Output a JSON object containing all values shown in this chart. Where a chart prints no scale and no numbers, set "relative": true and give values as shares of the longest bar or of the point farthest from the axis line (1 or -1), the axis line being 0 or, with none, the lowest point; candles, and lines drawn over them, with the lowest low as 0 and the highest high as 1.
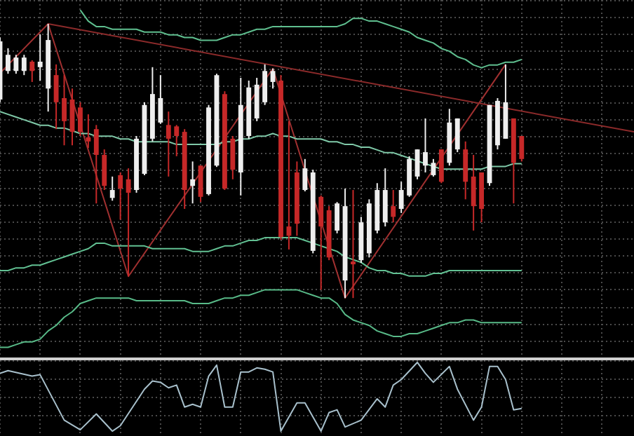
{
  "chart_data": [
    {
      "type": "candlestick",
      "relative": true,
      "grid": true,
      "legend": false,
      "tick_labels": false,
      "categories": [
        null,
        null,
        null,
        null,
        null,
        null,
        null,
        null,
        null,
        null,
        null,
        null,
        null,
        null,
        null,
        null,
        null,
        null,
        null,
        null,
        null,
        null,
        null,
        null,
        null,
        null,
        null,
        null,
        null,
        null,
        null,
        null,
        null,
        null,
        null,
        null,
        null,
        null,
        null,
        null,
        null,
        null,
        null,
        null,
        null,
        null,
        null,
        null,
        null,
        null,
        null,
        null,
        null,
        null,
        null,
        null,
        null,
        null,
        null,
        null,
        null,
        null,
        null,
        null,
        null,
        null,
        null,
        null,
        null,
        null,
        null,
        null,
        null,
        null,
        null,
        null,
        null,
        null,
        null,
        null
      ],
      "ohlc": [
        [
          0.724,
          0.951,
          0.714,
          0.936
        ],
        [
          0.828,
          0.911,
          0.818,
          0.887
        ],
        [
          0.828,
          0.887,
          0.818,
          0.877
        ],
        [
          0.828,
          0.887,
          0.813,
          0.877
        ],
        [
          0.862,
          0.867,
          0.788,
          0.828
        ],
        [
          0.842,
          0.961,
          0.793,
          0.862
        ],
        [
          0.764,
          1,
          0.68,
          0.941
        ],
        [
          0.813,
          0.852,
          0.616,
          0.714
        ],
        [
          0.729,
          0.813,
          0.557,
          0.645
        ],
        [
          0.724,
          0.764,
          0.557,
          0.606
        ],
        [
          0.695,
          0.714,
          0.591,
          0.606
        ],
        [
          0.586,
          0.67,
          0.547,
          0.571
        ],
        [
          0.616,
          0.631,
          0.345,
          0.522
        ],
        [
          0.522,
          0.542,
          0.394,
          0.409
        ],
        [
          0.365,
          0.443,
          0.355,
          0.394
        ],
        [
          0.448,
          0.458,
          0.286,
          0.399
        ],
        [
          0.433,
          0.473,
          0.079,
          0.384
        ],
        [
          0.394,
          0.591,
          0.384,
          0.581
        ],
        [
          0.453,
          0.714,
          0.448,
          0.704
        ],
        [
          0.581,
          0.842,
          0.571,
          0.744
        ],
        [
          0.64,
          0.813,
          0.635,
          0.729
        ],
        [
          0.631,
          0.68,
          0.443,
          0.581
        ],
        [
          0.626,
          0.631,
          0.517,
          0.591
        ],
        [
          0.606,
          0.616,
          0.325,
          0.394
        ],
        [
          0.409,
          0.498,
          0.345,
          0.433
        ],
        [
          0.483,
          0.483,
          0.35,
          0.369
        ],
        [
          0.379,
          0.704,
          0.374,
          0.695
        ],
        [
          0.483,
          0.818,
          0.478,
          0.813
        ],
        [
          0.744,
          0.754,
          0.394,
          0.399
        ],
        [
          0.581,
          0.591,
          0.433,
          0.468
        ],
        [
          0.458,
          0.803,
          0.374,
          0.704
        ],
        [
          0.591,
          0.793,
          0.581,
          0.768
        ],
        [
          0.655,
          0.803,
          0.645,
          0.778
        ],
        [
          0.714,
          0.852,
          0.704,
          0.828
        ],
        [
          0.788,
          0.837,
          0.764,
          0.828
        ],
        [
          0.793,
          0.813,
          0.212,
          0.222
        ],
        [
          0.261,
          0.645,
          0.177,
          0.227
        ],
        [
          0.458,
          0.498,
          0.227,
          0.271
        ],
        [
          0.394,
          0.507,
          0.389,
          0.473
        ],
        [
          0.172,
          0.468,
          0.163,
          0.458
        ],
        [
          0.369,
          0.374,
          0.03,
          0.261
        ],
        [
          0.32,
          0.335,
          0.138,
          0.148
        ],
        [
          0.246,
          0.35,
          0.236,
          0.345
        ],
        [
          0.064,
          0.399,
          0,
          0.335
        ],
        [
          0.133,
          0.394,
          0,
          0.123
        ],
        [
          0.138,
          0.296,
          0.128,
          0.276
        ],
        [
          0.163,
          0.36,
          0.148,
          0.345
        ],
        [
          0.246,
          0.419,
          0.236,
          0.394
        ],
        [
          0.276,
          0.473,
          0.261,
          0.394
        ],
        [
          0.335,
          0.394,
          0.276,
          0.296
        ],
        [
          0.325,
          0.424,
          0.31,
          0.394
        ],
        [
          0.374,
          0.517,
          0.369,
          0.507
        ],
        [
          0.443,
          0.542,
          0.433,
          0.542
        ],
        [
          0.483,
          0.655,
          0.458,
          0.532
        ],
        [
          0.448,
          0.507,
          0.443,
          0.493
        ],
        [
          0.542,
          0.542,
          0.419,
          0.424
        ],
        [
          0.493,
          0.69,
          0.483,
          0.64
        ],
        [
          0.542,
          0.655,
          0.532,
          0.655
        ],
        [
          0.542,
          0.571,
          0.36,
          0.424
        ],
        [
          0.443,
          0.522,
          0.246,
          0.335
        ],
        [
          0.458,
          0.458,
          0.276,
          0.325
        ],
        [
          0.419,
          0.704,
          0.409,
          0.704
        ],
        [
          0.557,
          0.729,
          0.542,
          0.719
        ],
        [
          0.581,
          0.852,
          0.581,
          0.714
        ],
        [
          0.655,
          0.655,
          0.345,
          0.493
        ],
        [
          0.591,
          0.591,
          0.498,
          0.507
        ],
        null,
        null,
        null,
        null,
        null,
        null,
        null,
        null,
        null,
        null,
        null,
        null,
        null,
        null
      ],
      "colors": [
        "#eeeeee",
        "#eeeeee",
        "#eeeeee",
        "#eeeeee",
        "#c62828",
        "#eeeeee",
        "#eeeeee",
        "#c62828",
        "#c62828",
        "#c62828",
        "#c62828",
        "#c62828",
        "#c62828",
        "#c62828",
        "#eeeeee",
        "#c62828",
        "#c62828",
        "#eeeeee",
        "#eeeeee",
        "#eeeeee",
        "#eeeeee",
        "#c62828",
        "#c62828",
        "#c62828",
        "#eeeeee",
        "#c62828",
        "#eeeeee",
        "#eeeeee",
        "#c62828",
        "#c62828",
        "#eeeeee",
        "#eeeeee",
        "#eeeeee",
        "#eeeeee",
        "#eeeeee",
        "#c62828",
        "#c62828",
        "#c62828",
        "#eeeeee",
        "#eeeeee",
        "#c62828",
        "#c62828",
        "#eeeeee",
        "#eeeeee",
        "#c62828",
        "#eeeeee",
        "#eeeeee",
        "#eeeeee",
        "#eeeeee",
        "#c62828",
        "#eeeeee",
        "#eeeeee",
        "#eeeeee",
        "#eeeeee",
        "#eeeeee",
        "#c62828",
        "#eeeeee",
        "#eeeeee",
        "#c62828",
        "#c62828",
        "#c62828",
        "#eeeeee",
        "#eeeeee",
        "#eeeeee",
        "#c62828",
        "#c62828",
        null,
        null,
        null,
        null,
        null,
        null,
        null,
        null,
        null,
        null,
        null,
        null,
        null,
        null
      ],
      "series": [
        {
          "type": "line",
          "color": "#7fc9a8",
          "values": [
            0.68,
            0.67,
            0.66,
            0.65,
            0.64,
            0.63,
            0.63,
            0.62,
            0.62,
            0.61,
            0.6,
            0.6,
            0.59,
            0.59,
            0.59,
            0.58,
            0.58,
            0.57,
            0.57,
            0.57,
            0.57,
            0.57,
            0.56,
            0.56,
            0.56,
            0.56,
            0.56,
            0.56,
            0.57,
            0.57,
            0.58,
            0.58,
            0.59,
            0.59,
            0.6,
            0.59,
            0.59,
            0.58,
            0.58,
            0.58,
            0.58,
            0.57,
            0.57,
            0.56,
            0.56,
            0.55,
            0.55,
            0.54,
            0.53,
            0.53,
            0.52,
            0.51,
            0.5,
            0.49,
            0.48,
            0.47,
            0.47,
            0.47,
            0.47,
            0.47,
            0.47,
            0.48,
            0.48,
            0.48,
            0.49,
            0.49,
            null,
            null,
            null,
            null,
            null,
            null,
            null,
            null,
            null,
            null,
            null,
            null,
            null,
            null
          ]
        },
        {
          "type": "line",
          "color": "#5fbf8f",
          "values": [
            null,
            null,
            null,
            null,
            null,
            null,
            null,
            null,
            null,
            null,
            1.05,
            1.01,
            0.99,
            0.99,
            0.98,
            0.98,
            0.98,
            0.98,
            0.97,
            0.97,
            0.97,
            0.96,
            0.96,
            0.95,
            0.95,
            0.94,
            0.94,
            0.94,
            0.95,
            0.96,
            0.96,
            0.97,
            0.98,
            0.98,
            0.99,
            0.99,
            0.99,
            0.99,
            0.99,
            0.99,
            0.99,
            0.99,
            0.99,
            1.0,
            1.02,
            1.02,
            1.01,
            1.01,
            1.0,
            0.99,
            0.98,
            0.97,
            0.95,
            0.94,
            0.93,
            0.91,
            0.9,
            0.88,
            0.87,
            0.85,
            0.84,
            0.85,
            0.85,
            0.86,
            0.86,
            0.87,
            null,
            null,
            null,
            null,
            null,
            null,
            null,
            null,
            null,
            null,
            null,
            null,
            null,
            null
          ]
        },
        {
          "type": "line",
          "color": "#62c193",
          "values": [
            0.1,
            0.1,
            0.11,
            0.11,
            0.12,
            0.12,
            0.13,
            0.14,
            0.15,
            0.16,
            0.17,
            0.18,
            0.2,
            0.2,
            0.19,
            0.19,
            0.19,
            0.19,
            0.19,
            0.18,
            0.18,
            0.18,
            0.18,
            0.18,
            0.17,
            0.17,
            0.17,
            0.18,
            0.19,
            0.19,
            0.2,
            0.21,
            0.21,
            0.22,
            0.22,
            0.22,
            0.22,
            0.22,
            0.21,
            0.2,
            0.19,
            0.18,
            0.17,
            0.15,
            0.14,
            0.13,
            0.11,
            0.1,
            0.1,
            0.09,
            0.09,
            0.08,
            0.08,
            0.08,
            0.09,
            0.09,
            0.1,
            0.1,
            0.1,
            0.1,
            0.1,
            0.1,
            0.1,
            0.1,
            0.1,
            0.1,
            null,
            null,
            null,
            null,
            null,
            null,
            null,
            null,
            null,
            null,
            null,
            null,
            null,
            null
          ]
        },
        {
          "type": "line",
          "color": "#58ba88",
          "values": [
            -0.18,
            -0.18,
            -0.17,
            -0.16,
            -0.16,
            -0.15,
            -0.12,
            -0.1,
            -0.07,
            -0.05,
            -0.02,
            -0.01,
            0,
            0,
            0,
            0,
            0,
            -0.01,
            -0.01,
            -0.01,
            -0.01,
            -0.01,
            -0.01,
            -0.01,
            -0.02,
            -0.02,
            -0.02,
            -0.01,
            0,
            0,
            0.01,
            0.01,
            0.02,
            0.03,
            0.03,
            0.03,
            0.03,
            0.03,
            0.02,
            0.01,
            0,
            0,
            -0.02,
            -0.06,
            -0.08,
            -0.09,
            -0.1,
            -0.12,
            -0.13,
            -0.14,
            -0.14,
            -0.13,
            -0.13,
            -0.12,
            -0.11,
            -0.1,
            -0.09,
            -0.09,
            -0.08,
            -0.08,
            -0.09,
            -0.09,
            -0.09,
            -0.09,
            -0.09,
            -0.09,
            null,
            null,
            null,
            null,
            null,
            null,
            null,
            null,
            null,
            null,
            null,
            null,
            null,
            null
          ]
        },
        {
          "type": "line",
          "color": "#8b2a2a",
          "values": [
            null,
            null,
            null,
            null,
            null,
            null,
            1,
            null,
            null,
            null,
            null,
            null,
            null,
            null,
            null,
            null,
            null,
            null,
            null,
            null,
            null,
            null,
            null,
            null,
            null,
            null,
            null,
            null,
            null,
            null,
            null,
            null,
            null,
            null,
            null,
            null,
            null,
            null,
            null,
            null,
            null,
            null,
            null,
            null,
            null,
            null,
            null,
            null,
            null,
            null,
            null,
            null,
            null,
            null,
            null,
            null,
            null,
            null,
            null,
            null,
            null,
            null,
            null,
            null,
            null,
            null,
            null,
            null,
            null,
            null,
            null,
            null,
            null,
            null,
            null,
            null,
            null,
            null,
            null,
            0.606
          ]
        },
        {
          "type": "line",
          "color": "#a03030",
          "values": [
            0.82,
            null,
            null,
            null,
            null,
            null,
            1,
            null,
            null,
            null,
            null,
            null,
            null,
            null,
            null,
            null,
            0.079,
            null,
            null,
            null,
            null,
            null,
            null,
            null,
            null,
            null,
            null,
            null,
            null,
            null,
            null,
            null,
            null,
            null,
            0.837,
            null,
            null,
            null,
            null,
            null,
            null,
            null,
            null,
            0,
            null,
            null,
            null,
            null,
            null,
            null,
            null,
            null,
            null,
            null,
            null,
            null,
            null,
            null,
            null,
            null,
            null,
            null,
            null,
            0.852,
            null,
            null,
            null,
            null,
            null,
            null,
            null,
            null,
            null,
            null,
            null,
            null,
            null,
            null,
            null,
            null
          ]
        }
      ]
    },
    {
      "type": "line",
      "relative": true,
      "grid": true,
      "legend": false,
      "tick_labels": false,
      "color": "#a8c0cc",
      "categories": [
        null,
        null,
        null,
        null,
        null,
        null,
        null,
        null,
        null,
        null,
        null,
        null,
        null,
        null,
        null,
        null,
        null,
        null,
        null,
        null,
        null,
        null,
        null,
        null,
        null,
        null,
        null,
        null,
        null,
        null,
        null,
        null,
        null,
        null,
        null,
        null,
        null,
        null,
        null,
        null,
        null,
        null,
        null,
        null,
        null,
        null,
        null,
        null,
        null,
        null,
        null,
        null,
        null,
        null,
        null,
        null,
        null,
        null,
        null,
        null,
        null,
        null,
        null,
        null,
        null,
        null,
        null,
        null,
        null,
        null,
        null,
        null,
        null,
        null,
        null,
        null,
        null,
        null,
        null,
        null
      ],
      "values": [
        0.84,
        0.88,
        null,
        null,
        0.8,
        0.82,
        null,
        null,
        0.16,
        null,
        0.02,
        null,
        0.25,
        null,
        0,
        0.08,
        null,
        null,
        0.61,
        0.73,
        0.71,
        0.63,
        0.67,
        0.35,
        0.39,
        0.35,
        0.8,
        0.96,
        0.35,
        0.35,
        0.86,
        0.86,
        0.92,
        0.9,
        0.86,
        0,
        null,
        0.41,
        0.41,
        null,
        0,
        0.27,
        0.31,
        0.06,
        null,
        0.16,
        null,
        0.47,
        0.35,
        0.67,
        0.75,
        null,
        1,
        0.84,
        0.71,
        null,
        0.94,
        0.61,
        null,
        0.16,
        0.35,
        0.94,
        0.94,
        0.75,
        0.31,
        0.33,
        null,
        null,
        null,
        null,
        null,
        null,
        null,
        null,
        null,
        null,
        null,
        null,
        null,
        null
      ]
    }
  ]
}
